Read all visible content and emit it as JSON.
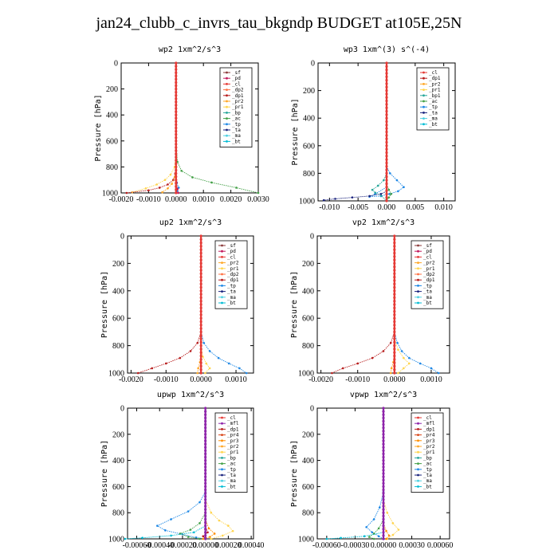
{
  "figure_title": "jan24_clubb_c_invrs_tau_bkgndp  BUDGET at105E,25N",
  "colors": {
    "sf": "#8b3a3a",
    "pd": "#c2185b",
    "cl": "#e53935",
    "dp1": "#b71c1c",
    "dp2": "#ff7043",
    "pr1": "#ffd54f",
    "pr2": "#ffa726",
    "pr3": "#ff8f00",
    "pr4": "#d84315",
    "bp": "#26a69a",
    "bp1": "#26a69a",
    "ac": "#43a047",
    "tp": "#1e88e5",
    "ta": "#1a237e",
    "ma": "#4dd0e1",
    "bt": "#00bcd4",
    "mfl": "#8e24aa",
    "mfl_bt": "#8e24aa"
  },
  "chart_data": [
    {
      "type": "line",
      "title": "wp2  1xm^2/s^3",
      "ylabel": "Pressure [hPa]",
      "xlim": [
        -0.002,
        0.003
      ],
      "ylim": [
        1000,
        0
      ],
      "xticks": [
        "-0.0020",
        "-0.0010",
        "0.0000",
        "0.0010",
        "0.0020",
        "0.0030"
      ],
      "xtick_values": [
        -0.002,
        -0.001,
        0,
        0.001,
        0.002,
        0.003
      ],
      "yticks": [
        "0",
        "200",
        "400",
        "600",
        "800",
        "1000"
      ],
      "legend": [
        "_sf",
        "_pd",
        "_cl",
        "_dp2",
        "_dp1",
        "_pr2",
        "_pr1",
        "_bp",
        "_ac",
        "_tp",
        "_ta",
        "_ma",
        "_bt"
      ],
      "legend_keys": [
        "sf",
        "pd",
        "cl",
        "dp2",
        "dp1",
        "pr2",
        "pr1",
        "bp",
        "ac",
        "tp",
        "ta",
        "ma",
        "bt"
      ],
      "series": [
        {
          "key": "ac",
          "x": [
            0.0,
            5e-05,
            0.0002,
            0.0006,
            0.0013,
            0.0022,
            0.003
          ],
          "p": [
            600,
            760,
            830,
            880,
            920,
            960,
            1000
          ]
        },
        {
          "key": "pr1",
          "x": [
            0.0,
            -5e-05,
            -0.0002,
            -0.0004,
            -0.0007,
            -0.0011,
            -0.0016
          ],
          "p": [
            700,
            800,
            860,
            900,
            935,
            965,
            995
          ]
        },
        {
          "key": "dp1",
          "x": [
            0.0,
            -3e-05,
            -0.0001,
            -0.0003,
            -0.0006,
            -0.001,
            -0.0018
          ],
          "p": [
            750,
            850,
            900,
            935,
            960,
            980,
            1000
          ]
        },
        {
          "key": "pr2",
          "x": [
            0.0,
            -5e-05,
            -0.00015,
            -0.0003,
            -0.0005
          ],
          "p": [
            800,
            880,
            930,
            965,
            995
          ]
        },
        {
          "key": "tp",
          "x": [
            0.0,
            3e-05,
            0.0001,
            5e-05,
            0.0
          ],
          "p": [
            850,
            920,
            960,
            985,
            1000
          ]
        },
        {
          "key": "pd",
          "x": [
            0.0,
            2e-05,
            5e-05,
            8e-05
          ],
          "p": [
            850,
            920,
            970,
            1000
          ]
        }
      ]
    },
    {
      "type": "line",
      "title": "wp3  1xm^(3) s^(-4)",
      "ylabel": "Pressure [hPa]",
      "xlim": [
        -0.012,
        0.012
      ],
      "ylim": [
        1000,
        0
      ],
      "xticks": [
        "-0.010",
        "-0.005",
        "0.000",
        "0.005",
        "0.010"
      ],
      "xtick_values": [
        -0.01,
        -0.005,
        0,
        0.005,
        0.01
      ],
      "yticks": [
        "0",
        "200",
        "400",
        "600",
        "800",
        "1000"
      ],
      "legend": [
        "_cl",
        "_dp1",
        "_pr2",
        "_pr1",
        "_bp1",
        "_ac",
        "_tp",
        "_ta",
        "_ma",
        "_bt"
      ],
      "legend_keys": [
        "cl",
        "dp1",
        "pr2",
        "pr1",
        "bp1",
        "ac",
        "tp",
        "ta",
        "ma",
        "bt"
      ],
      "series": [
        {
          "key": "tp",
          "x": [
            0.0,
            0.0006,
            0.0018,
            0.003,
            0.002,
            0.0005,
            -0.001,
            -0.003,
            -0.002,
            0.0
          ],
          "p": [
            750,
            800,
            850,
            900,
            930,
            950,
            965,
            970,
            950,
            900
          ]
        },
        {
          "key": "bp1",
          "x": [
            0.0,
            -0.0005,
            -0.0015,
            -0.0025,
            -0.002,
            -0.001,
            0.0
          ],
          "p": [
            800,
            850,
            890,
            920,
            940,
            960,
            1000
          ]
        },
        {
          "key": "ta",
          "x": [
            0.0,
            -0.001,
            -0.003,
            -0.006,
            -0.009,
            -0.011
          ],
          "p": [
            930,
            950,
            965,
            975,
            985,
            995
          ]
        },
        {
          "key": "ac",
          "x": [
            0.0,
            0.0004,
            0.0008,
            0.0004,
            0.0
          ],
          "p": [
            880,
            920,
            950,
            975,
            1000
          ]
        }
      ]
    },
    {
      "type": "line",
      "title": "up2  1xm^2/s^3",
      "ylabel": "Pressure [hPa]",
      "xlim": [
        -0.0021,
        0.0015
      ],
      "ylim": [
        1000,
        0
      ],
      "xticks": [
        "-0.0020",
        "-0.0010",
        "0.0000",
        "0.0010"
      ],
      "xtick_values": [
        -0.002,
        -0.001,
        0,
        0.001
      ],
      "yticks": [
        "0",
        "200",
        "400",
        "600",
        "800",
        "1000"
      ],
      "legend": [
        "_sf",
        "_pd",
        "_cl",
        "_pr2",
        "_pr1",
        "_dp2",
        "_dp1",
        "_tp",
        "_ta",
        "_ma",
        "_bt"
      ],
      "legend_keys": [
        "sf",
        "pd",
        "cl",
        "pr2",
        "pr1",
        "dp2",
        "dp1",
        "tp",
        "ta",
        "ma",
        "bt"
      ],
      "series": [
        {
          "key": "dp1",
          "x": [
            0.0,
            -0.0001,
            -0.0003,
            -0.0006,
            -0.001,
            -0.0014,
            -0.0018
          ],
          "p": [
            700,
            780,
            840,
            890,
            930,
            965,
            1000
          ]
        },
        {
          "key": "tp",
          "x": [
            0.0,
            8e-05,
            0.00025,
            0.0005,
            0.0008,
            0.0011,
            0.0013
          ],
          "p": [
            700,
            780,
            840,
            890,
            930,
            965,
            1000
          ]
        },
        {
          "key": "pr1",
          "x": [
            0.0,
            5e-05,
            0.00015,
            0.00025,
            0.00012
          ],
          "p": [
            800,
            880,
            930,
            965,
            1000
          ]
        },
        {
          "key": "pr2",
          "x": [
            0.0,
            -3e-05,
            -8e-05,
            -0.0001
          ],
          "p": [
            850,
            920,
            965,
            1000
          ]
        }
      ]
    },
    {
      "type": "line",
      "title": "vp2  1xm^2/s^3",
      "ylabel": "Pressure [hPa]",
      "xlim": [
        -0.0021,
        0.0015
      ],
      "ylim": [
        1000,
        0
      ],
      "xticks": [
        "-0.0020",
        "-0.0010",
        "0.0000",
        "0.0010"
      ],
      "xtick_values": [
        -0.002,
        -0.001,
        0,
        0.001
      ],
      "yticks": [
        "0",
        "200",
        "400",
        "600",
        "800",
        "1000"
      ],
      "legend": [
        "_sf",
        "_pd",
        "_cl",
        "_pr2",
        "_pr1",
        "_dp2",
        "_dp1",
        "_tp",
        "_ta",
        "_ma",
        "_bt"
      ],
      "legend_keys": [
        "sf",
        "pd",
        "cl",
        "pr2",
        "pr1",
        "dp2",
        "dp1",
        "tp",
        "ta",
        "ma",
        "bt"
      ],
      "series": [
        {
          "key": "dp1",
          "x": [
            0.0,
            -0.0001,
            -0.0003,
            -0.0006,
            -0.001,
            -0.0014,
            -0.0017
          ],
          "p": [
            700,
            780,
            840,
            890,
            930,
            965,
            1000
          ]
        },
        {
          "key": "tp",
          "x": [
            0.0,
            8e-05,
            0.0002,
            0.0004,
            0.0007,
            0.001,
            0.0012
          ],
          "p": [
            700,
            780,
            840,
            890,
            930,
            965,
            1000
          ]
        },
        {
          "key": "pr1",
          "x": [
            0.0,
            0.0001,
            0.00025,
            0.0004,
            0.00025,
            0.0001
          ],
          "p": [
            750,
            830,
            890,
            930,
            965,
            1000
          ]
        },
        {
          "key": "pr2",
          "x": [
            0.0,
            -3e-05,
            -8e-05,
            -0.0001
          ],
          "p": [
            850,
            920,
            965,
            1000
          ]
        }
      ]
    },
    {
      "type": "line",
      "title": "upwp  1xm^2/s^3",
      "ylabel": "Pressure [hPa]",
      "xlim": [
        -0.00068,
        0.00042
      ],
      "ylim": [
        1000,
        0
      ],
      "xticks": [
        "-0.00060",
        "-0.00040",
        "-0.00020",
        "0.00000",
        "0.00020",
        "0.00040"
      ],
      "xtick_values": [
        -0.0006,
        -0.0004,
        -0.0002,
        0,
        0.0002,
        0.0004
      ],
      "yticks": [
        "0",
        "200",
        "400",
        "600",
        "800",
        "1000"
      ],
      "legend": [
        "_cl",
        "_mfl",
        "_dp1",
        "_pr4",
        "_pr3",
        "_pr2",
        "_pr1",
        "_bp",
        "_ac",
        "_tp",
        "_ta",
        "_ma",
        "_bt"
      ],
      "legend_keys": [
        "cl",
        "mfl",
        "dp1",
        "pr4",
        "pr3",
        "pr2",
        "pr1",
        "bp",
        "ac",
        "tp",
        "ta",
        "ma",
        "bt"
      ],
      "series": [
        {
          "key": "tp",
          "x": [
            0.0,
            -5e-05,
            -0.00015,
            -0.0003,
            -0.00042,
            -0.00035,
            -0.0002,
            -8e-05,
            0.0
          ],
          "p": [
            640,
            720,
            790,
            850,
            900,
            935,
            965,
            990,
            1000
          ]
        },
        {
          "key": "pr1",
          "x": [
            0.0,
            5e-05,
            0.00012,
            0.0002,
            0.00024,
            0.00015,
            5e-05
          ],
          "p": [
            700,
            800,
            860,
            900,
            940,
            975,
            1000
          ]
        },
        {
          "key": "ac",
          "x": [
            0.0,
            -5e-05,
            -0.00013,
            -0.00022,
            -0.00015,
            -5e-05
          ],
          "p": [
            800,
            880,
            930,
            960,
            985,
            1000
          ]
        },
        {
          "key": "pr3",
          "x": [
            0.0,
            3e-05,
            8e-05,
            4e-05,
            -2e-05
          ],
          "p": [
            850,
            920,
            960,
            985,
            1000
          ]
        },
        {
          "key": "bt",
          "x": [
            0.0,
            -0.0001,
            -0.0003,
            -0.00055,
            -0.0007
          ],
          "p": [
            900,
            950,
            975,
            992,
            1000
          ]
        },
        {
          "key": "dp1",
          "x": [
            0.0,
            2e-05,
            -2e-05,
            0.0
          ],
          "p": [
            900,
            950,
            980,
            1000
          ]
        }
      ]
    },
    {
      "type": "line",
      "title": "vpwp  1xm^2/s^3",
      "ylabel": "Pressure [hPa]",
      "xlim": [
        -0.0007,
        0.0007
      ],
      "ylim": [
        1000,
        0
      ],
      "xticks": [
        "-0.00060",
        "-0.00030",
        "0.00000",
        "0.00030",
        "0.00060"
      ],
      "xtick_values": [
        -0.0006,
        -0.0003,
        0,
        0.0003,
        0.0006
      ],
      "yticks": [
        "0",
        "200",
        "400",
        "600",
        "800",
        "1000"
      ],
      "legend": [
        "_cl",
        "_mfl",
        "_dp1",
        "_pr4",
        "_pr3",
        "_pr2",
        "_pr1",
        "_bp",
        "_ac",
        "_tp",
        "_ta",
        "_ma",
        "_bt"
      ],
      "legend_keys": [
        "cl",
        "mfl",
        "dp1",
        "pr4",
        "pr3",
        "pr2",
        "pr1",
        "bp",
        "ac",
        "tp",
        "ta",
        "ma",
        "bt"
      ],
      "series": [
        {
          "key": "tp",
          "x": [
            0.0,
            -4e-05,
            -0.0001,
            -0.00018,
            -0.00012,
            -5e-05,
            0.0
          ],
          "p": [
            640,
            760,
            850,
            910,
            950,
            980,
            1000
          ]
        },
        {
          "key": "pr1",
          "x": [
            0.0,
            4e-05,
            0.0001,
            0.00016,
            0.0001,
            4e-05
          ],
          "p": [
            700,
            800,
            880,
            930,
            970,
            1000
          ]
        },
        {
          "key": "ac",
          "x": [
            0.0,
            -5e-05,
            -0.0001,
            -0.00015,
            -0.0001
          ],
          "p": [
            850,
            920,
            960,
            985,
            1000
          ]
        },
        {
          "key": "pr3",
          "x": [
            0.0,
            3e-05,
            6e-05,
            3e-05
          ],
          "p": [
            880,
            940,
            975,
            1000
          ]
        },
        {
          "key": "bt",
          "x": [
            0.0,
            -0.0002,
            -0.00045,
            -0.0006
          ],
          "p": [
            950,
            980,
            993,
            1000
          ]
        }
      ]
    }
  ]
}
